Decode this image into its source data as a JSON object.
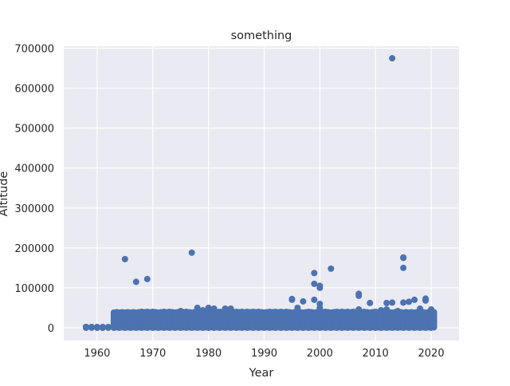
{
  "chart_data": {
    "type": "scatter",
    "title": "something",
    "xlabel": "Year",
    "ylabel": "Altitude",
    "xlim": [
      1954,
      2025
    ],
    "ylim": [
      -32000,
      705000
    ],
    "x_ticks": [
      1960,
      1970,
      1980,
      1990,
      2000,
      2010,
      2020
    ],
    "x_tick_labels": [
      "1960",
      "1970",
      "1980",
      "1990",
      "2000",
      "2010",
      "2020"
    ],
    "y_ticks": [
      0,
      100000,
      200000,
      300000,
      400000,
      500000,
      600000,
      700000
    ],
    "y_tick_labels": [
      "0",
      "100000",
      "200000",
      "300000",
      "400000",
      "500000",
      "600000",
      "700000"
    ],
    "grid": true,
    "colors": {
      "background": "#eaeaf2",
      "grid": "#ffffff",
      "marker": "#4c72b0",
      "text": "#262626"
    },
    "dense_band": {
      "x_start": 1958,
      "x_end": 2020,
      "y_max": 40000,
      "note_rows": [
        0,
        2000,
        4000,
        7000,
        10000,
        14000,
        18000,
        22000,
        26000,
        30000,
        34000,
        38000
      ]
    },
    "points": [
      [
        1958,
        2000
      ],
      [
        1959,
        1000
      ],
      [
        1960,
        0
      ],
      [
        1961,
        0
      ],
      [
        1962,
        1000
      ],
      [
        1963,
        5000
      ],
      [
        1964,
        34000
      ],
      [
        1965,
        38000
      ],
      [
        1965,
        172000
      ],
      [
        1966,
        36000
      ],
      [
        1967,
        115000
      ],
      [
        1967,
        36000
      ],
      [
        1968,
        40000
      ],
      [
        1969,
        122000
      ],
      [
        1969,
        40000
      ],
      [
        1970,
        40000
      ],
      [
        1971,
        36000
      ],
      [
        1972,
        40000
      ],
      [
        1973,
        40000
      ],
      [
        1974,
        38000
      ],
      [
        1975,
        42000
      ],
      [
        1976,
        40000
      ],
      [
        1977,
        188000
      ],
      [
        1977,
        38000
      ],
      [
        1978,
        50000
      ],
      [
        1979,
        44000
      ],
      [
        1980,
        50000
      ],
      [
        1981,
        48000
      ],
      [
        1982,
        40000
      ],
      [
        1983,
        48000
      ],
      [
        1984,
        48000
      ],
      [
        1985,
        40000
      ],
      [
        1986,
        40000
      ],
      [
        1987,
        40000
      ],
      [
        1988,
        40000
      ],
      [
        1989,
        40000
      ],
      [
        1990,
        38000
      ],
      [
        1991,
        40000
      ],
      [
        1992,
        40000
      ],
      [
        1993,
        40000
      ],
      [
        1994,
        40000
      ],
      [
        1995,
        72000
      ],
      [
        1995,
        70000
      ],
      [
        1996,
        50000
      ],
      [
        1997,
        66000
      ],
      [
        1998,
        40000
      ],
      [
        1999,
        137000
      ],
      [
        1999,
        110000
      ],
      [
        1999,
        70000
      ],
      [
        2000,
        105000
      ],
      [
        2000,
        100000
      ],
      [
        2000,
        60000
      ],
      [
        2000,
        50000
      ],
      [
        2001,
        40000
      ],
      [
        2002,
        148000
      ],
      [
        2003,
        40000
      ],
      [
        2004,
        40000
      ],
      [
        2005,
        40000
      ],
      [
        2006,
        40000
      ],
      [
        2007,
        85000
      ],
      [
        2007,
        80000
      ],
      [
        2007,
        46000
      ],
      [
        2008,
        40000
      ],
      [
        2009,
        62000
      ],
      [
        2010,
        40000
      ],
      [
        2011,
        44000
      ],
      [
        2012,
        62000
      ],
      [
        2012,
        46000
      ],
      [
        2013,
        675000
      ],
      [
        2013,
        63000
      ],
      [
        2014,
        42000
      ],
      [
        2015,
        176000
      ],
      [
        2015,
        175000
      ],
      [
        2015,
        150000
      ],
      [
        2015,
        63000
      ],
      [
        2016,
        65000
      ],
      [
        2017,
        70000
      ],
      [
        2018,
        48000
      ],
      [
        2019,
        73000
      ],
      [
        2019,
        68000
      ],
      [
        2020,
        46000
      ]
    ]
  }
}
